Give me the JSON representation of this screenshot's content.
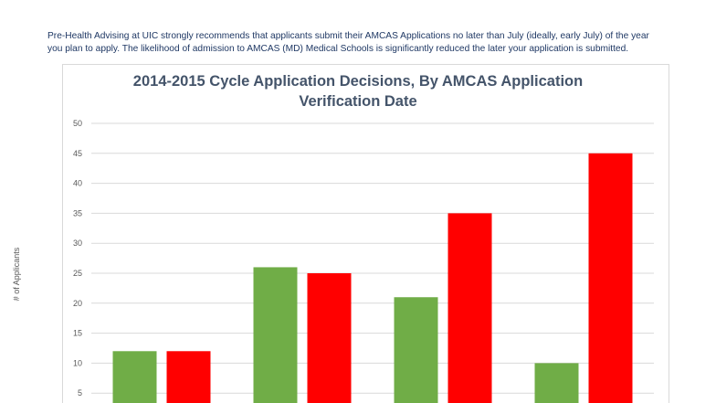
{
  "intro": {
    "line1": "Pre-Health Advising at UIC strongly recommends that applicants submit their AMCAS Applications no later than July (ideally, early July) of the year",
    "line2": "you plan to apply. The likelihood of admission to AMCAS (MD) Medical Schools is significantly reduced the later your application is submitted."
  },
  "chart_data": {
    "type": "bar",
    "title_line1": "2014-2015 Cycle Application Decisions, By AMCAS Application",
    "title_line2": "Verification Date",
    "ylabel": "# of Applicants",
    "xlabel": "",
    "ylim": [
      0,
      50
    ],
    "yticks": [
      5,
      10,
      15,
      20,
      25,
      30,
      35,
      40,
      45,
      50
    ],
    "grid": true,
    "categories": [
      "",
      "",
      "",
      ""
    ],
    "series": [
      {
        "color": "#70ad47",
        "values": [
          12,
          26,
          21,
          10
        ]
      },
      {
        "color": "#ff0000",
        "values": [
          12,
          25,
          35,
          45
        ]
      }
    ]
  }
}
